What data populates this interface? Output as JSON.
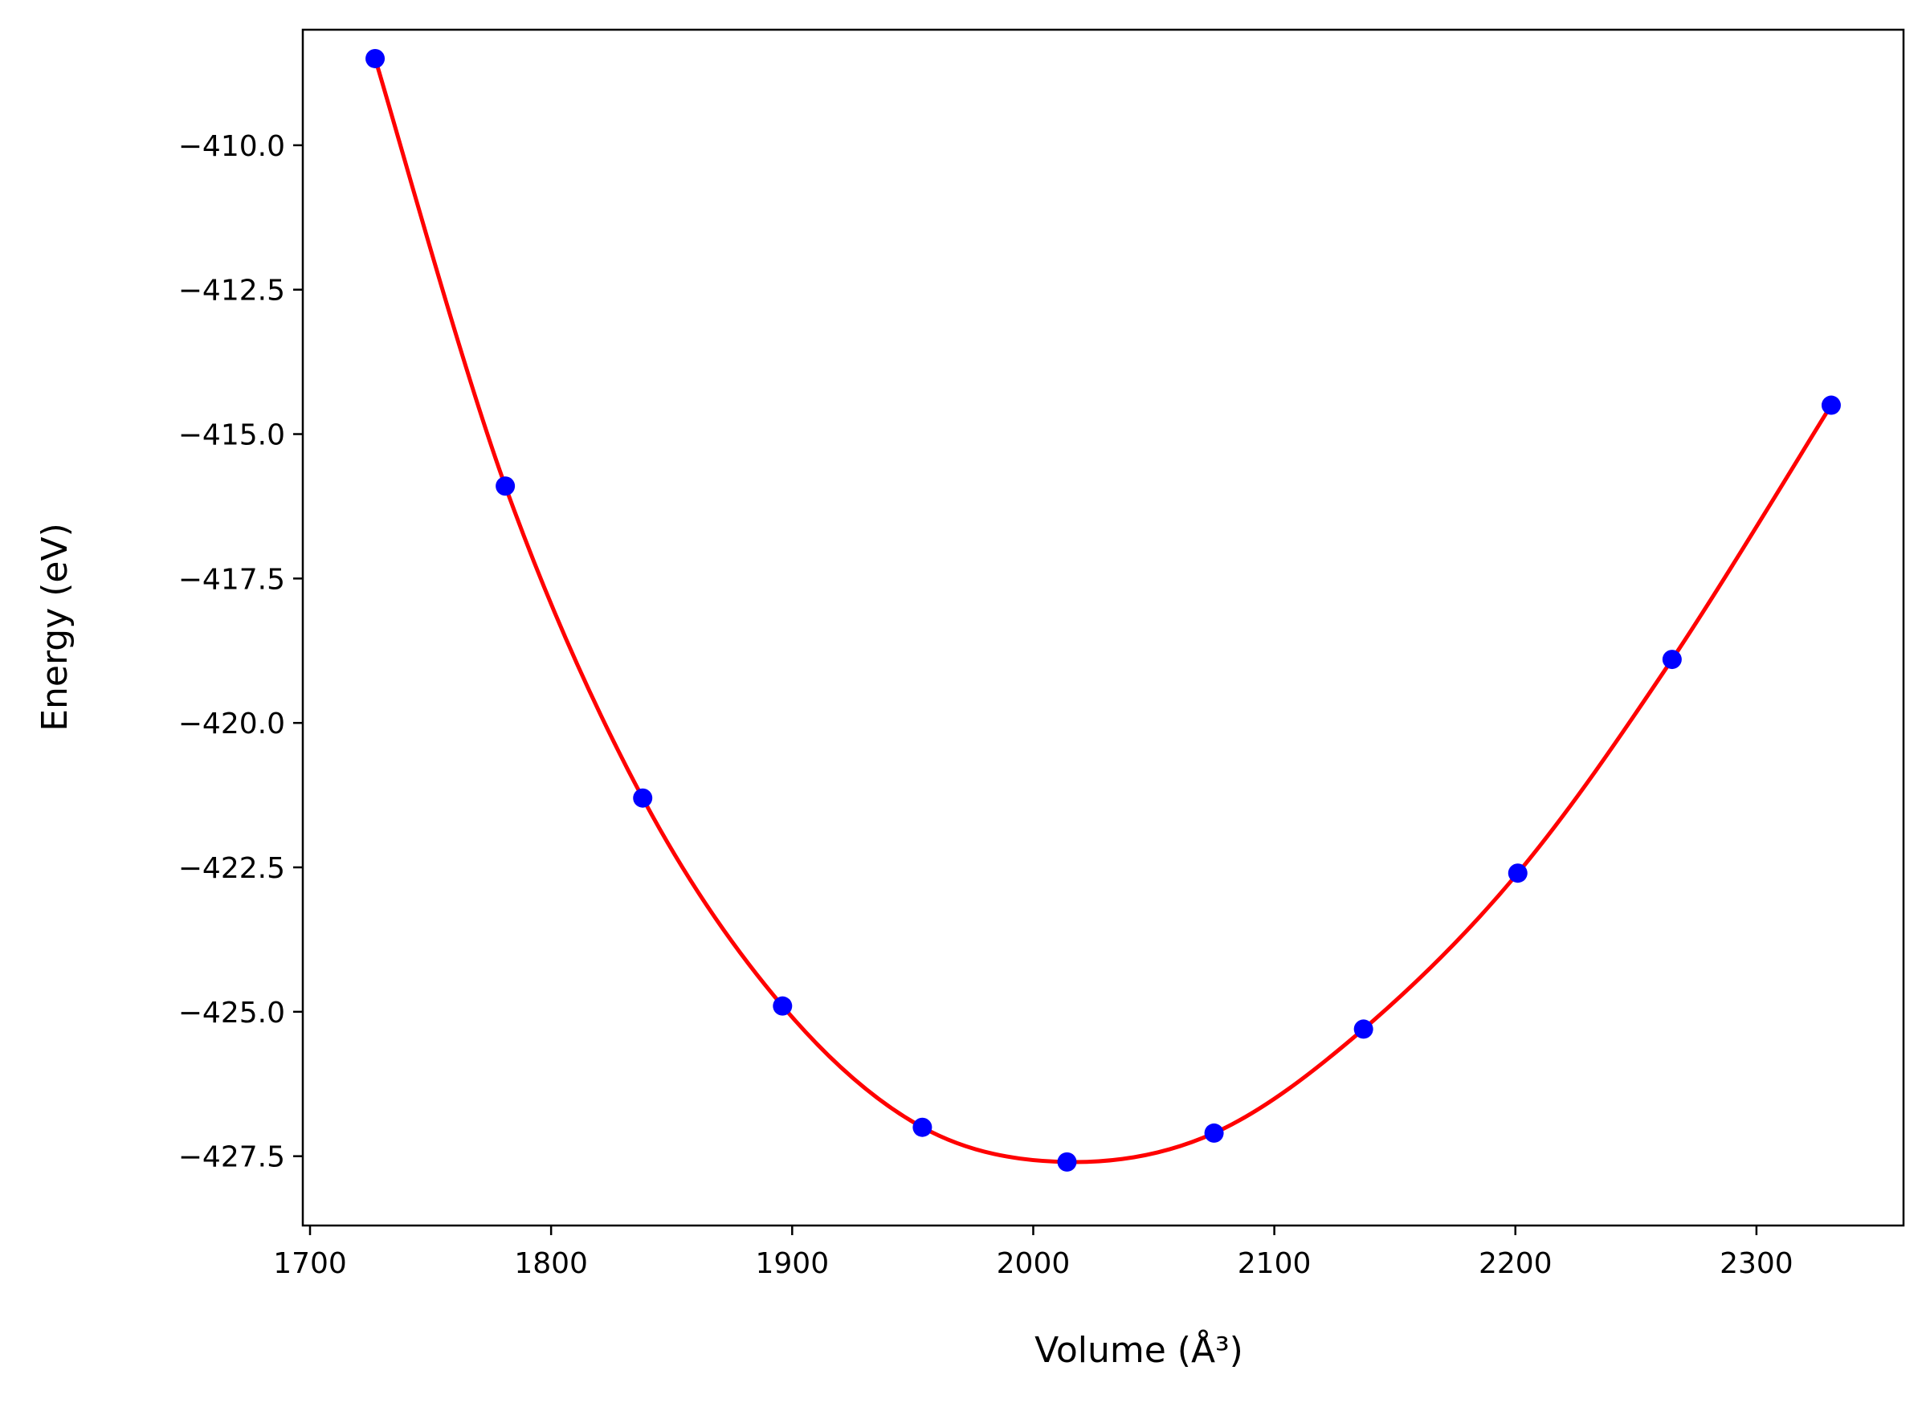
{
  "chart_data": {
    "type": "scatter",
    "title": "",
    "xlabel": "Volume (Å³)",
    "ylabel": "Energy (eV)",
    "xlim": [
      1697,
      2361
    ],
    "ylim": [
      -428.7,
      -408.0
    ],
    "grid": false,
    "legend": "none",
    "x_ticks": [
      1700,
      1800,
      1900,
      2000,
      2100,
      2200,
      2300
    ],
    "x_tick_labels": [
      "1700",
      "1800",
      "1900",
      "2000",
      "2100",
      "2200",
      "2300"
    ],
    "y_ticks": [
      -410.0,
      -412.5,
      -415.0,
      -417.5,
      -420.0,
      -422.5,
      -425.0,
      -427.5
    ],
    "y_tick_labels": [
      "−410.0",
      "−412.5",
      "−415.0",
      "−417.5",
      "−420.0",
      "−422.5",
      "−425.0",
      "−427.5"
    ],
    "series": [
      {
        "kind": "points",
        "color": "#0000ff",
        "x": [
          1727,
          1781,
          1838,
          1896,
          1954,
          2014,
          2075,
          2137,
          2201,
          2265,
          2331
        ],
        "y": [
          -408.5,
          -415.9,
          -421.3,
          -424.9,
          -427.0,
          -427.6,
          -427.1,
          -425.3,
          -422.6,
          -418.9,
          -414.5
        ]
      },
      {
        "kind": "fit-curve",
        "color": "#ff0000",
        "x": [
          1727,
          1781,
          1838,
          1896,
          1954,
          2014,
          2075,
          2137,
          2201,
          2265,
          2331
        ],
        "y": [
          -408.5,
          -415.9,
          -421.3,
          -424.9,
          -427.0,
          -427.6,
          -427.1,
          -425.3,
          -422.6,
          -418.9,
          -414.5
        ]
      }
    ]
  }
}
